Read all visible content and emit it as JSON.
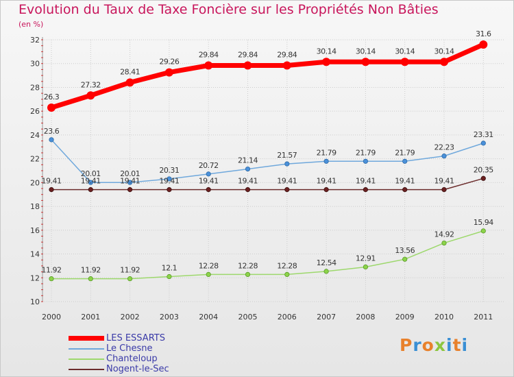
{
  "title": "Evolution du Taux de Taxe Foncière sur les Propriétés Non Bâties",
  "unit_label": "(en %)",
  "logo_text": "Proxiti",
  "colors": {
    "title": "#c8155b",
    "grid": "#cccccc",
    "axis_text": "#333333",
    "legend_text": "#3a3aa8",
    "logo_letters": [
      "#e8812c",
      "#3a8fd4",
      "#e8812c",
      "#8cc63f",
      "#3a8fd4",
      "#e8812c",
      "#3a8fd4"
    ]
  },
  "chart_data": {
    "type": "line",
    "x": [
      "2000",
      "2001",
      "2002",
      "2003",
      "2004",
      "2005",
      "2006",
      "2007",
      "2008",
      "2009",
      "2010",
      "2011"
    ],
    "ylim": [
      10,
      32
    ],
    "yticks": [
      "10",
      "12",
      "14",
      "16",
      "18",
      "20",
      "22",
      "24",
      "26",
      "28",
      "30",
      "32"
    ],
    "grid": true,
    "legend_position": "bottom-left",
    "series": [
      {
        "name": "LES ESSARTS",
        "color": "#ff0000",
        "values": [
          26.3,
          27.32,
          28.41,
          29.26,
          29.84,
          29.84,
          29.84,
          30.14,
          30.14,
          30.14,
          30.14,
          31.6
        ],
        "labels": [
          "26.3",
          "27.32",
          "28.41",
          "29.26",
          "29.84",
          "29.84",
          "29.84",
          "30.14",
          "30.14",
          "30.14",
          "30.14",
          "31.6"
        ]
      },
      {
        "name": "Le Chesne",
        "color": "#6fa8dc",
        "values": [
          23.6,
          20.01,
          20.01,
          20.31,
          20.72,
          21.14,
          21.57,
          21.79,
          21.79,
          21.79,
          22.23,
          23.31
        ],
        "labels": [
          "23.6",
          "20.01",
          "20.01",
          "20.31",
          "20.72",
          "21.14",
          "21.57",
          "21.79",
          "21.79",
          "21.79",
          "22.23",
          "23.31"
        ]
      },
      {
        "name": "Chanteloup",
        "color": "#9dd86c",
        "values": [
          11.92,
          11.92,
          11.92,
          12.1,
          12.28,
          12.28,
          12.28,
          12.54,
          12.91,
          13.56,
          14.92,
          15.94
        ],
        "labels": [
          "11.92",
          "11.92",
          "11.92",
          "12.1",
          "12.28",
          "12.28",
          "12.28",
          "12.54",
          "12.91",
          "13.56",
          "14.92",
          "15.94"
        ]
      },
      {
        "name": "Nogent-le-Sec",
        "color": "#6b2c2c",
        "values": [
          19.41,
          19.41,
          19.41,
          19.41,
          19.41,
          19.41,
          19.41,
          19.41,
          19.41,
          19.41,
          19.41,
          20.35
        ],
        "labels": [
          "19.41",
          "19.41",
          "19.41",
          "19.41",
          "19.41",
          "19.41",
          "19.41",
          "19.41",
          "19.41",
          "19.41",
          "19.41",
          "20.35"
        ]
      }
    ]
  }
}
